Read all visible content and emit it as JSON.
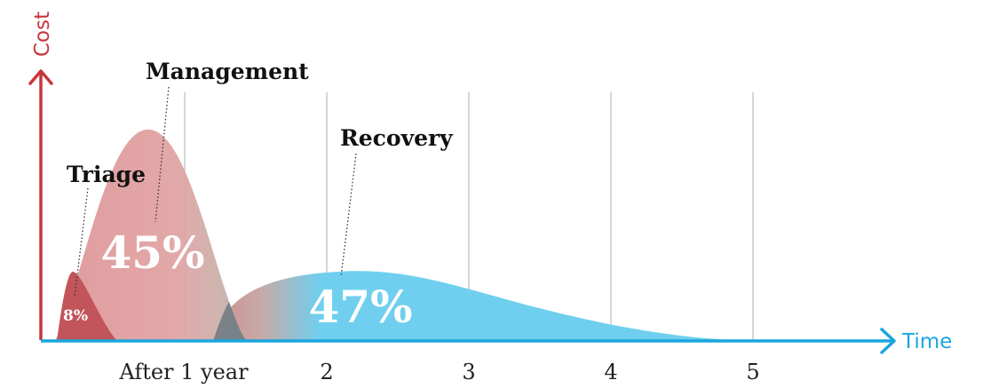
{
  "axes": {
    "y_title": "Cost",
    "x_title": "Time",
    "x_ticks": [
      "After 1 year",
      "2",
      "3",
      "4",
      "5"
    ]
  },
  "phases": {
    "triage": {
      "label": "Triage",
      "share": "8%"
    },
    "management": {
      "label": "Management",
      "share": "45%"
    },
    "recovery": {
      "label": "Recovery",
      "share": "47%"
    }
  },
  "colors": {
    "cost_axis": "#c8363c",
    "time_axis": "#1aa6df",
    "triage_fill": "#c2555b",
    "management_fill": "#df9a9c",
    "recovery_fill": "#6fd0f2",
    "gridline": "#c9c9c9"
  }
}
